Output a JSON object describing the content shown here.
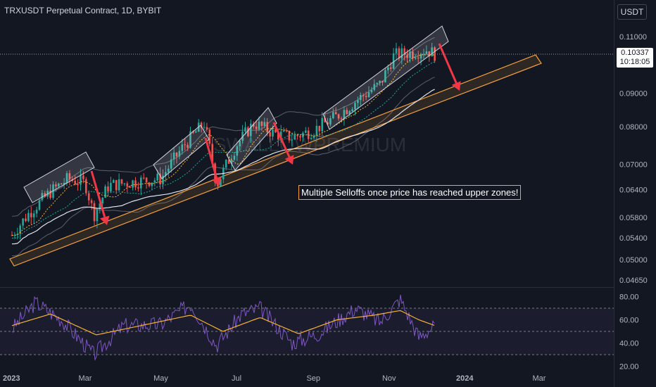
{
  "header": {
    "title": "TRXUSDT Perpetual Contract, 1D, BYBIT",
    "unit": "USDT"
  },
  "price_tag": {
    "value": "0.10337",
    "countdown": "10:18:05"
  },
  "watermark": "SWALLOWPREMIUM",
  "annotation": "Multiple Selloffs once price has reached upper zones!",
  "colors": {
    "up": "#26a69a",
    "down": "#ef5350",
    "channel": "#f7a13c",
    "rsi": "#7e57c2",
    "rsi_ma": "#f7b231",
    "arrow": "#f23645"
  },
  "chart_data": [
    {
      "type": "candlestick",
      "ylim": [
        0.0465,
        0.113
      ],
      "y_ticks": [
        "0.11000",
        "0.09000",
        "0.08000",
        "0.07000",
        "0.06400",
        "0.05800",
        "0.05400",
        "0.05000",
        "0.04650"
      ],
      "x_ticks": [
        "2023",
        "Mar",
        "May",
        "Jul",
        "Sep",
        "Nov",
        "2024",
        "Mar"
      ],
      "current_price": 0.10337,
      "series": [
        {
          "points": [
            {
              "date": "2023-01-01",
              "close": 0.0545
            },
            {
              "date": "2023-01-15",
              "close": 0.059
            },
            {
              "date": "2023-02-01",
              "close": 0.0635
            },
            {
              "date": "2023-02-15",
              "close": 0.0665
            },
            {
              "date": "2023-03-01",
              "close": 0.0655
            },
            {
              "date": "2023-03-08",
              "close": 0.0585
            },
            {
              "date": "2023-03-20",
              "close": 0.065
            },
            {
              "date": "2023-04-15",
              "close": 0.066
            },
            {
              "date": "2023-05-01",
              "close": 0.0665
            },
            {
              "date": "2023-05-20",
              "close": 0.075
            },
            {
              "date": "2023-06-05",
              "close": 0.081
            },
            {
              "date": "2023-06-15",
              "close": 0.065
            },
            {
              "date": "2023-07-01",
              "close": 0.075
            },
            {
              "date": "2023-07-15",
              "close": 0.081
            },
            {
              "date": "2023-08-01",
              "close": 0.078
            },
            {
              "date": "2023-08-15",
              "close": 0.077
            },
            {
              "date": "2023-09-01",
              "close": 0.079
            },
            {
              "date": "2023-09-20",
              "close": 0.083
            },
            {
              "date": "2023-10-10",
              "close": 0.089
            },
            {
              "date": "2023-10-25",
              "close": 0.093
            },
            {
              "date": "2023-11-05",
              "close": 0.103
            },
            {
              "date": "2023-11-20",
              "close": 0.104
            },
            {
              "date": "2023-12-01",
              "close": 0.105
            },
            {
              "date": "2023-12-08",
              "close": 0.1034
            }
          ]
        }
      ]
    },
    {
      "type": "line",
      "ylim": [
        20,
        85
      ],
      "y_ticks": [
        "80.00",
        "60.00",
        "40.00",
        "20.00"
      ],
      "series": [
        {
          "points": [
            {
              "date": "2023-01-01",
              "value": 52
            },
            {
              "date": "2023-01-20",
              "value": 75
            },
            {
              "date": "2023-02-10",
              "value": 60
            },
            {
              "date": "2023-03-08",
              "value": 30
            },
            {
              "date": "2023-04-01",
              "value": 55
            },
            {
              "date": "2023-05-01",
              "value": 56
            },
            {
              "date": "2023-05-25",
              "value": 74
            },
            {
              "date": "2023-06-15",
              "value": 38
            },
            {
              "date": "2023-07-05",
              "value": 65
            },
            {
              "date": "2023-07-20",
              "value": 70
            },
            {
              "date": "2023-08-15",
              "value": 40
            },
            {
              "date": "2023-09-05",
              "value": 48
            },
            {
              "date": "2023-10-05",
              "value": 70
            },
            {
              "date": "2023-10-25",
              "value": 58
            },
            {
              "date": "2023-11-10",
              "value": 78
            },
            {
              "date": "2023-11-25",
              "value": 45
            },
            {
              "date": "2023-12-08",
              "value": 55
            }
          ]
        },
        {
          "points": [
            {
              "date": "2023-01-01",
              "value": 55
            },
            {
              "date": "2023-02-01",
              "value": 65
            },
            {
              "date": "2023-03-10",
              "value": 47
            },
            {
              "date": "2023-04-15",
              "value": 55
            },
            {
              "date": "2023-05-25",
              "value": 64
            },
            {
              "date": "2023-06-20",
              "value": 50
            },
            {
              "date": "2023-07-20",
              "value": 62
            },
            {
              "date": "2023-08-20",
              "value": 48
            },
            {
              "date": "2023-09-20",
              "value": 60
            },
            {
              "date": "2023-10-20",
              "value": 64
            },
            {
              "date": "2023-11-10",
              "value": 68
            },
            {
              "date": "2023-11-25",
              "value": 60
            },
            {
              "date": "2023-12-08",
              "value": 55
            }
          ]
        }
      ]
    }
  ]
}
